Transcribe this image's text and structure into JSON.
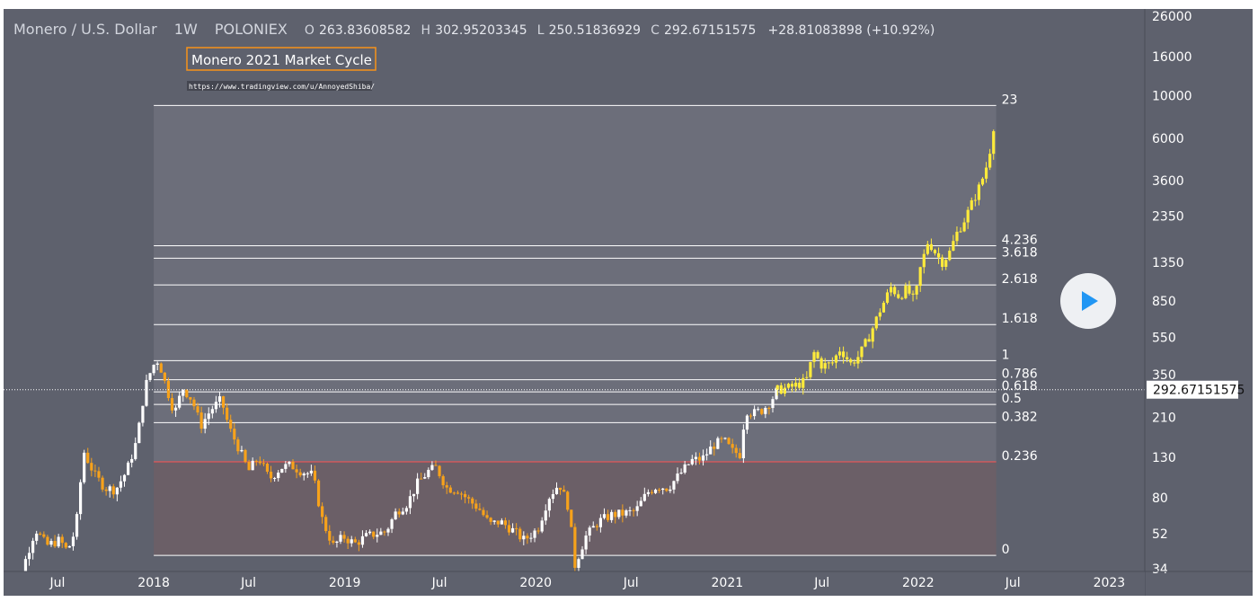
{
  "header": {
    "pair": "Monero / U.S. Dollar",
    "interval": "1W",
    "exchange": "POLONIEX",
    "open_label": "O",
    "open": "263.83608582",
    "high_label": "H",
    "high": "302.95203345",
    "low_label": "L",
    "low": "250.51836929",
    "close_label": "C",
    "close": "292.67151575",
    "change": "+28.81083898 (+10.92%)"
  },
  "annotation": {
    "title": "Monero 2021 Market Cycle",
    "url": "https://www.tradingview.com/u/AnnoyedShiba/"
  },
  "price_tag": "292.67151575",
  "colors": {
    "background": "#5e616d",
    "fib_zone": "#6c6e7a",
    "fib_low_zone": "#6b5f67",
    "fib_236": "#ff5252",
    "candle_up": "#ffffff",
    "candle_down": "#f7a21b",
    "projection": "#ffeb3b",
    "play_button": "#2196f3"
  },
  "chart_data": {
    "type": "candlestick",
    "y_scale": "log",
    "ylim": [
      26,
      26000
    ],
    "y_ticks": [
      {
        "value": 26000,
        "label": "26000"
      },
      {
        "value": 16000,
        "label": "16000"
      },
      {
        "value": 10000,
        "label": "10000"
      },
      {
        "value": 6000,
        "label": "6000"
      },
      {
        "value": 3600,
        "label": "3600"
      },
      {
        "value": 2350,
        "label": "2350"
      },
      {
        "value": 1350,
        "label": "1350"
      },
      {
        "value": 850,
        "label": "850"
      },
      {
        "value": 550,
        "label": "550"
      },
      {
        "value": 350,
        "label": "350"
      },
      {
        "value": 210,
        "label": "210"
      },
      {
        "value": 130,
        "label": "130"
      },
      {
        "value": 80,
        "label": "80"
      },
      {
        "value": 52,
        "label": "52"
      },
      {
        "value": 34,
        "label": "34"
      }
    ],
    "xlim": [
      "2017-03-20",
      "2023-03-10"
    ],
    "x_ticks": [
      {
        "date": "2017-07-01",
        "label": "Jul"
      },
      {
        "date": "2018-01-01",
        "label": "2018"
      },
      {
        "date": "2018-07-01",
        "label": "Jul"
      },
      {
        "date": "2019-01-01",
        "label": "2019"
      },
      {
        "date": "2019-07-01",
        "label": "Jul"
      },
      {
        "date": "2020-01-01",
        "label": "2020"
      },
      {
        "date": "2020-07-01",
        "label": "Jul"
      },
      {
        "date": "2021-01-01",
        "label": "2021"
      },
      {
        "date": "2021-07-01",
        "label": "Jul"
      },
      {
        "date": "2022-01-01",
        "label": "2022"
      },
      {
        "date": "2022-07-01",
        "label": "Jul"
      },
      {
        "date": "2023-01-01",
        "label": "2023"
      }
    ],
    "fib_range": {
      "start": "2018-01-01",
      "end": "2022-05-30"
    },
    "fib_levels": [
      {
        "label": "23",
        "price": 8900
      },
      {
        "label": "4.236",
        "price": 1650
      },
      {
        "label": "3.618",
        "price": 1420
      },
      {
        "label": "2.618",
        "price": 1030
      },
      {
        "label": "1.618",
        "price": 640
      },
      {
        "label": "1",
        "price": 415
      },
      {
        "label": "0.786",
        "price": 330
      },
      {
        "label": "0.618",
        "price": 285
      },
      {
        "label": "0.5",
        "price": 245
      },
      {
        "label": "0.382",
        "price": 197
      },
      {
        "label": "0.236",
        "price": 123
      },
      {
        "label": "0",
        "price": 40
      }
    ],
    "price_path": [
      [
        "2017-03-20",
        24
      ],
      [
        "2017-04-15",
        26
      ],
      [
        "2017-05-01",
        38
      ],
      [
        "2017-05-20",
        55
      ],
      [
        "2017-06-10",
        45
      ],
      [
        "2017-07-05",
        48
      ],
      [
        "2017-07-20",
        42
      ],
      [
        "2017-08-05",
        55
      ],
      [
        "2017-08-20",
        140
      ],
      [
        "2017-09-10",
        105
      ],
      [
        "2017-09-30",
        90
      ],
      [
        "2017-10-20",
        88
      ],
      [
        "2017-11-10",
        110
      ],
      [
        "2017-11-30",
        160
      ],
      [
        "2017-12-15",
        300
      ],
      [
        "2017-12-30",
        390
      ],
      [
        "2018-01-10",
        420
      ],
      [
        "2018-01-25",
        300
      ],
      [
        "2018-02-10",
        220
      ],
      [
        "2018-02-25",
        300
      ],
      [
        "2018-03-15",
        260
      ],
      [
        "2018-04-01",
        190
      ],
      [
        "2018-04-20",
        230
      ],
      [
        "2018-05-10",
        260
      ],
      [
        "2018-05-25",
        185
      ],
      [
        "2018-06-15",
        140
      ],
      [
        "2018-07-01",
        110
      ],
      [
        "2018-07-20",
        130
      ],
      [
        "2018-08-10",
        100
      ],
      [
        "2018-09-01",
        115
      ],
      [
        "2018-09-20",
        118
      ],
      [
        "2018-10-10",
        110
      ],
      [
        "2018-11-01",
        105
      ],
      [
        "2018-11-20",
        60
      ],
      [
        "2018-12-10",
        45
      ],
      [
        "2018-12-30",
        50
      ],
      [
        "2019-01-20",
        46
      ],
      [
        "2019-02-10",
        50
      ],
      [
        "2019-03-01",
        52
      ],
      [
        "2019-03-20",
        53
      ],
      [
        "2019-04-10",
        68
      ],
      [
        "2019-05-01",
        75
      ],
      [
        "2019-05-20",
        95
      ],
      [
        "2019-06-10",
        110
      ],
      [
        "2019-06-25",
        115
      ],
      [
        "2019-07-15",
        90
      ],
      [
        "2019-08-05",
        88
      ],
      [
        "2019-08-25",
        78
      ],
      [
        "2019-09-15",
        70
      ],
      [
        "2019-10-05",
        58
      ],
      [
        "2019-10-25",
        60
      ],
      [
        "2019-11-15",
        55
      ],
      [
        "2019-12-10",
        48
      ],
      [
        "2020-01-05",
        55
      ],
      [
        "2020-01-25",
        80
      ],
      [
        "2020-02-15",
        95
      ],
      [
        "2020-03-05",
        70
      ],
      [
        "2020-03-15",
        35
      ],
      [
        "2020-04-05",
        50
      ],
      [
        "2020-04-30",
        60
      ],
      [
        "2020-05-25",
        65
      ],
      [
        "2020-06-15",
        66
      ],
      [
        "2020-07-10",
        68
      ],
      [
        "2020-08-01",
        85
      ],
      [
        "2020-08-20",
        92
      ],
      [
        "2020-09-10",
        90
      ],
      [
        "2020-10-01",
        105
      ],
      [
        "2020-10-25",
        125
      ],
      [
        "2020-11-15",
        128
      ],
      [
        "2020-12-05",
        150
      ],
      [
        "2020-12-25",
        160
      ],
      [
        "2021-01-10",
        140
      ],
      [
        "2021-01-25",
        135
      ],
      [
        "2021-02-05",
        230
      ],
      [
        "2021-02-20",
        220
      ],
      [
        "2021-03-10",
        230
      ],
      [
        "2021-03-25",
        255
      ],
      [
        "2021-04-07",
        292.67
      ]
    ],
    "projection_path": [
      [
        "2021-04-07",
        292
      ],
      [
        "2021-05-01",
        300
      ],
      [
        "2021-06-01",
        325
      ],
      [
        "2021-06-15",
        460
      ],
      [
        "2021-07-01",
        390
      ],
      [
        "2021-07-20",
        400
      ],
      [
        "2021-08-05",
        480
      ],
      [
        "2021-08-25",
        400
      ],
      [
        "2021-09-10",
        440
      ],
      [
        "2021-09-30",
        560
      ],
      [
        "2021-10-20",
        760
      ],
      [
        "2021-11-10",
        1000
      ],
      [
        "2021-11-25",
        900
      ],
      [
        "2021-12-10",
        980
      ],
      [
        "2021-12-25",
        840
      ],
      [
        "2022-01-05",
        1250
      ],
      [
        "2022-01-20",
        1750
      ],
      [
        "2022-02-01",
        1550
      ],
      [
        "2022-02-15",
        1350
      ],
      [
        "2022-03-01",
        1500
      ],
      [
        "2022-03-15",
        1900
      ],
      [
        "2022-04-01",
        2300
      ],
      [
        "2022-04-15",
        2800
      ],
      [
        "2022-05-01",
        3500
      ],
      [
        "2022-05-15",
        4600
      ],
      [
        "2022-05-30",
        8500
      ]
    ]
  }
}
